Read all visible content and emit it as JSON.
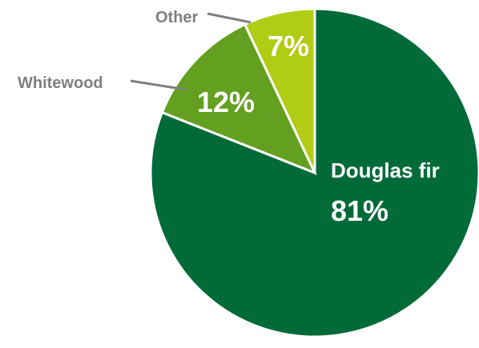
{
  "chart_data": {
    "type": "pie",
    "unit": "%",
    "start_angle_deg": 0,
    "direction": "clockwise",
    "slices": [
      {
        "name": "Douglas fir",
        "value": 81,
        "label": "81%",
        "color": "#006a38",
        "label_position": "inside"
      },
      {
        "name": "Whitewood",
        "value": 12,
        "label": "12%",
        "color": "#64a020",
        "label_position": "outside"
      },
      {
        "name": "Other",
        "value": 7,
        "label": "7%",
        "color": "#b1cc14",
        "label_position": "outside"
      }
    ]
  }
}
